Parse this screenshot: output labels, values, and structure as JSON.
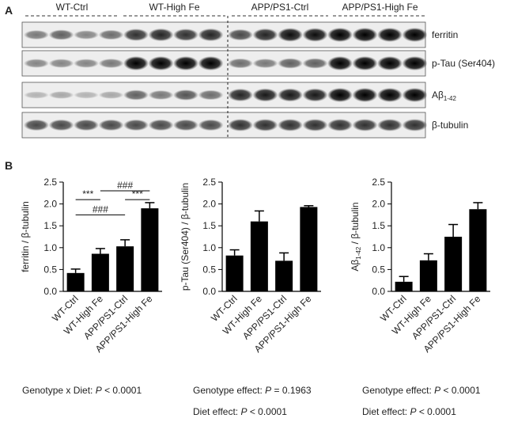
{
  "panel_a": {
    "label": "A",
    "groups": [
      "WT-Ctrl",
      "WT-High Fe",
      "APP/PS1-Ctrl",
      "APP/PS1-High Fe"
    ],
    "bands": [
      [
        "ferritin"
      ],
      [
        "p-Tau (Ser404)"
      ],
      [
        "Aβ",
        "1-42"
      ],
      [
        "β-tubulin"
      ]
    ]
  },
  "panel_b": {
    "label": "B"
  },
  "chart_data": [
    {
      "type": "bar",
      "ylabel": [
        "ferritin / β-tubulin"
      ],
      "categories": [
        "WT-Ctrl",
        "WT-High Fe",
        "APP/PS1-Ctrl",
        "APP/PS1-High Fe"
      ],
      "values": [
        0.42,
        0.86,
        1.03,
        1.9
      ],
      "errors": [
        0.09,
        0.12,
        0.15,
        0.13
      ],
      "color": "#000000",
      "ylim": [
        0,
        2.5
      ],
      "yticks": [
        {
          "value": 0,
          "label": "0.0"
        },
        0.5,
        {
          "value": 1,
          "label": "1.0"
        },
        1.5,
        {
          "value": 2,
          "label": "2.0"
        },
        2.5
      ],
      "brackets": [
        {
          "from": 1,
          "to": 3,
          "y": 2.3,
          "label": "###"
        },
        {
          "from": 0,
          "to": 1,
          "y": 2.1,
          "label": "***"
        },
        {
          "from": 2,
          "to": 3,
          "y": 2.1,
          "label": "***"
        },
        {
          "from": 0,
          "to": 2,
          "y": 1.75,
          "label": "###"
        }
      ],
      "stats": [
        [
          "Genotype x Diet: ",
          "P",
          " < 0.0001"
        ]
      ]
    },
    {
      "type": "bar",
      "ylabel": [
        "p-Tau (Ser404) / β-tubulin"
      ],
      "categories": [
        "WT-Ctrl",
        "WT-High Fe",
        "APP/PS1-Ctrl",
        "APP/PS1-High Fe"
      ],
      "values": [
        0.82,
        1.6,
        0.7,
        1.93
      ],
      "errors": [
        0.13,
        0.24,
        0.18,
        0.03
      ],
      "color": "#000000",
      "ylim": [
        0,
        2.5
      ],
      "yticks": [
        {
          "value": 0,
          "label": "0.0"
        },
        0.5,
        {
          "value": 1,
          "label": "1.0"
        },
        1.5,
        {
          "value": 2,
          "label": "2.0"
        },
        2.5
      ],
      "stats": [
        [
          "Genotype effect: ",
          "P",
          " = 0.1963"
        ],
        [
          "Diet effect: ",
          "P",
          " < 0.0001"
        ]
      ]
    },
    {
      "type": "bar",
      "ylabel": [
        "Aβ",
        "1-42",
        " / β-tubulin"
      ],
      "categories": [
        "WT-Ctrl",
        "WT-High Fe",
        "APP/PS1-Ctrl",
        "APP/PS1-High Fe"
      ],
      "values": [
        0.22,
        0.71,
        1.25,
        1.88
      ],
      "errors": [
        0.12,
        0.15,
        0.28,
        0.15
      ],
      "color": "#000000",
      "ylim": [
        0,
        2.5
      ],
      "yticks": [
        {
          "value": 0,
          "label": "0.0"
        },
        0.5,
        {
          "value": 1,
          "label": "1.0"
        },
        1.5,
        {
          "value": 2,
          "label": "2.0"
        },
        2.5
      ],
      "stats": [
        [
          "Genotype effect: ",
          "P",
          " < 0.0001"
        ],
        [
          "Diet effect: ",
          "P",
          " < 0.0001"
        ]
      ]
    }
  ]
}
